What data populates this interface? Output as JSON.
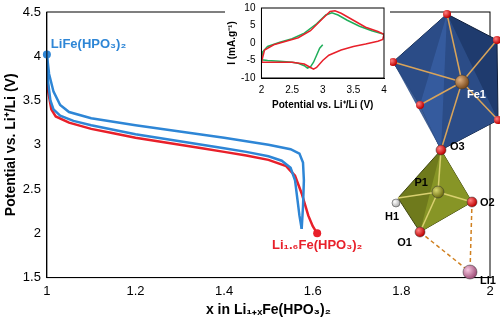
{
  "chart_data": [
    {
      "type": "line",
      "x_label": "x in Li₁₊ₓFe(HPO₃)₂",
      "y_label": "Potential vs. Li⁺/Li (V)",
      "xlim": [
        1,
        2
      ],
      "xticks": [
        1,
        1.2,
        1.4,
        1.6,
        1.8,
        2
      ],
      "ylim": [
        1.5,
        4.5
      ],
      "yticks": [
        1.5,
        2,
        2.5,
        3,
        3.5,
        4,
        4.5
      ],
      "grid": false,
      "series": [
        {
          "color": "#2e86d6",
          "x": [
            1.0,
            1.003,
            1.008,
            1.015,
            1.03,
            1.06,
            1.1,
            1.15,
            1.2,
            1.25,
            1.3,
            1.35,
            1.4,
            1.45,
            1.5,
            1.53,
            1.55,
            1.56,
            1.565,
            1.57,
            1.575
          ],
          "values": [
            4.02,
            3.7,
            3.5,
            3.4,
            3.33,
            3.27,
            3.22,
            3.17,
            3.12,
            3.08,
            3.04,
            3.0,
            2.96,
            2.92,
            2.87,
            2.82,
            2.74,
            2.6,
            2.4,
            2.2,
            2.05
          ]
        },
        {
          "color": "#2e86d6",
          "x": [
            1.575,
            1.578,
            1.58,
            1.578,
            1.57,
            1.55,
            1.5,
            1.45,
            1.4,
            1.3,
            1.2,
            1.1,
            1.05,
            1.03,
            1.015,
            1.005,
            1.0
          ],
          "values": [
            2.05,
            2.3,
            2.6,
            2.8,
            2.9,
            2.95,
            3.0,
            3.04,
            3.08,
            3.15,
            3.22,
            3.3,
            3.37,
            3.45,
            3.6,
            3.8,
            4.02
          ]
        },
        {
          "color": "#e8202a",
          "x": [
            1.0,
            1.003,
            1.01,
            1.02,
            1.05,
            1.1,
            1.15,
            1.2,
            1.25,
            1.3,
            1.35,
            1.4,
            1.45,
            1.5,
            1.54,
            1.56,
            1.575,
            1.59,
            1.6,
            1.61
          ],
          "values": [
            3.85,
            3.6,
            3.4,
            3.32,
            3.25,
            3.18,
            3.13,
            3.08,
            3.04,
            3.0,
            2.96,
            2.92,
            2.88,
            2.83,
            2.76,
            2.65,
            2.45,
            2.2,
            2.08,
            2.0
          ]
        }
      ],
      "annotations": [
        {
          "text": "LiFe(HPO₃)₂",
          "x": 1.0,
          "y": 4.02,
          "color": "#2e86d6"
        },
        {
          "text": "Li₁.₆Fe(HPO₃)₂",
          "x": 1.61,
          "y": 2.0,
          "color": "#e8202a"
        }
      ]
    },
    {
      "type": "line",
      "x_label": "Potential vs. Li⁺/Li (V)",
      "y_label": "I (mA.g⁻¹)",
      "xlim": [
        2,
        4
      ],
      "xticks": [
        2,
        2.5,
        3,
        3.5,
        4
      ],
      "ylim": [
        -10,
        10
      ],
      "yticks": [
        -10,
        -5,
        0,
        5,
        10
      ],
      "grid": false,
      "series": [
        {
          "color": "#e8202a",
          "x": [
            2.0,
            2.05,
            2.2,
            2.4,
            2.6,
            2.8,
            3.0,
            3.12,
            3.2,
            3.3,
            3.5,
            3.7,
            3.9,
            4.0,
            3.98,
            3.9,
            3.7,
            3.5,
            3.3,
            3.1,
            3.0,
            2.9,
            2.85,
            2.8,
            2.7,
            2.5,
            2.3,
            2.1,
            2.0
          ],
          "values": [
            -5.5,
            -2.0,
            -0.5,
            0.5,
            1.5,
            3.5,
            7.0,
            9.0,
            9.2,
            8.5,
            6.5,
            4.5,
            3.3,
            2.5,
            1.0,
            0.5,
            -0.3,
            -1.0,
            -2.0,
            -3.5,
            -5.0,
            -7.0,
            -7.5,
            -7.0,
            -6.0,
            -5.5,
            -5.5,
            -5.5,
            -5.5
          ]
        },
        {
          "color": "#1fae5a",
          "x": [
            3.0,
            2.95,
            2.9,
            2.85,
            2.8,
            2.75,
            2.7,
            2.6,
            2.5,
            2.3,
            2.1,
            2.0,
            2.02,
            2.1,
            2.3,
            2.5,
            2.7,
            2.9,
            3.05,
            3.15,
            3.25,
            3.4,
            3.6,
            3.8,
            4.0
          ],
          "values": [
            -0.5,
            -1.5,
            -3.5,
            -5.5,
            -6.8,
            -7.2,
            -6.5,
            -5.8,
            -5.5,
            -5.2,
            -5.0,
            -4.8,
            -2.5,
            -1.0,
            0.2,
            1.2,
            2.8,
            5.5,
            8.0,
            8.6,
            8.0,
            6.5,
            4.8,
            3.5,
            2.5
          ]
        }
      ]
    }
  ],
  "structure": {
    "atoms": [
      "Fe1",
      "O3",
      "P1",
      "H1",
      "O2",
      "O1",
      "Li1"
    ]
  }
}
